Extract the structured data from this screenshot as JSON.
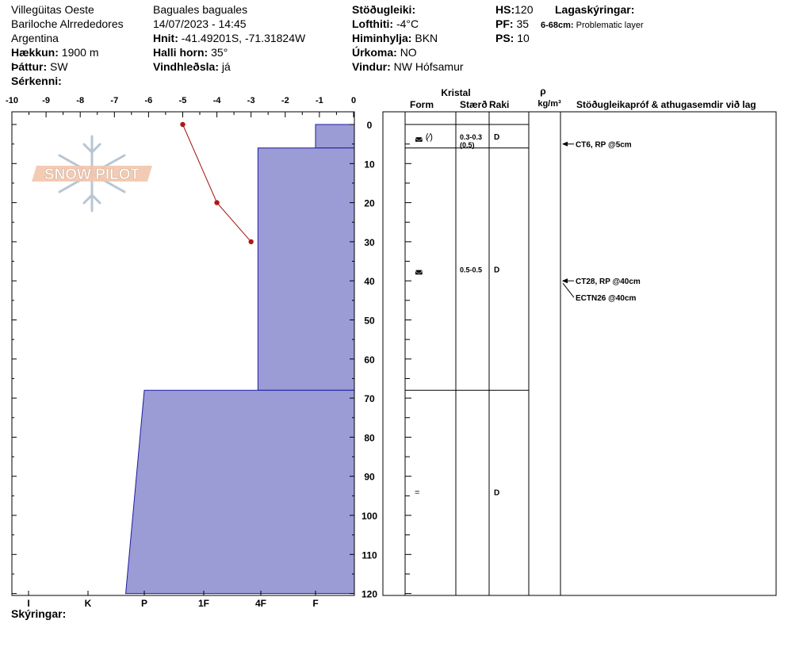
{
  "header": {
    "location": "Villegüitas Oeste",
    "region": "Bariloche Alrrededores",
    "country": "Argentina",
    "elevation_label": "Hækkun:",
    "elevation": "1900 m",
    "aspect_label": "Þáttur:",
    "aspect": "SW",
    "specifics_label": "Sérkenni:",
    "observer": "Baguales baguales",
    "datetime": "14/07/2023 - 14:45",
    "coords_label": "Hnit:",
    "coords": "-41.49201S, -71.31824W",
    "slope_label": "Halli horn:",
    "slope": "35°",
    "wind_loading_label": "Vindhleðsla:",
    "wind_loading": "já",
    "stability_label": "Stöðugleiki:",
    "air_temp_label": "Lofthiti:",
    "air_temp": "-4°C",
    "sky_label": "Himinhylja:",
    "sky": "BKN",
    "precip_label": "Úrkoma:",
    "precip": "NO",
    "wind_label": "Vindur:",
    "wind": "NW Hófsamur",
    "hs_label": "HS:",
    "hs": "120",
    "pf_label": "PF:",
    "pf": "35",
    "ps_label": "PS:",
    "ps": "10",
    "layer_notes_label": "Lagaskýringar:",
    "layer_note_range": "6-68cm:",
    "layer_note_text": "Problematic layer"
  },
  "footer": {
    "notes_label": "Skýringar:"
  },
  "columns": {
    "crystal": "Kristal",
    "form": "Form",
    "size": "Stærð",
    "moisture": "Raki",
    "density_symbol": "ρ",
    "density_unit": "kg/m³",
    "tests": "Stöðugleikapróf & athugasemdir við lag"
  },
  "watermark": {
    "text": "SNOW PILOT"
  },
  "chart_data": {
    "type": "snow_profile",
    "temp_axis": {
      "ticks": [
        "-10",
        "-9",
        "-8",
        "-7",
        "-6",
        "-5",
        "-4",
        "-3",
        "-2",
        "-1",
        "0"
      ],
      "range": [
        -10,
        0
      ]
    },
    "hardness_axis": {
      "ticks": [
        "I",
        "K",
        "P",
        "1F",
        "4F",
        "F"
      ]
    },
    "depth_axis": {
      "ticks": [
        "0",
        "10",
        "20",
        "30",
        "40",
        "50",
        "60",
        "70",
        "80",
        "90",
        "100",
        "110",
        "120"
      ],
      "range": [
        0,
        120
      ]
    },
    "temperature_profile": [
      {
        "depth": 0,
        "temp": -5
      },
      {
        "depth": 20,
        "temp": -4
      },
      {
        "depth": 30,
        "temp": -3
      }
    ],
    "hardness_profile": [
      {
        "top": 0,
        "bottom": 6,
        "hardness_top": 4.9,
        "hardness_bottom": 4.9
      },
      {
        "top": 6,
        "bottom": 68,
        "hardness_top": 3.0,
        "hardness_bottom": 3.0
      },
      {
        "top": 68,
        "bottom": 120,
        "hardness_top": -3.0,
        "hardness_bottom": -3.5
      }
    ],
    "layers": [
      {
        "top": 0,
        "bottom": 6,
        "form": "◛ (⁄)",
        "size": "0.3-0.3",
        "size_extra": "(0.5)",
        "moisture": "D",
        "label_depth": 3
      },
      {
        "top": 6,
        "bottom": 68,
        "form": "◛",
        "size": "0.5-0.5",
        "size_extra": "",
        "moisture": "D",
        "label_depth": 37
      },
      {
        "top": 68,
        "bottom": 120,
        "form": "=",
        "size": "",
        "size_extra": "",
        "moisture": "D",
        "label_depth": 94
      }
    ],
    "tests": [
      {
        "depth": 5,
        "text": "CT6, RP @5cm"
      },
      {
        "depth": 40,
        "text": "CT28, RP @40cm"
      },
      {
        "depth": 40,
        "text": "ECTN26 @40cm"
      }
    ]
  }
}
